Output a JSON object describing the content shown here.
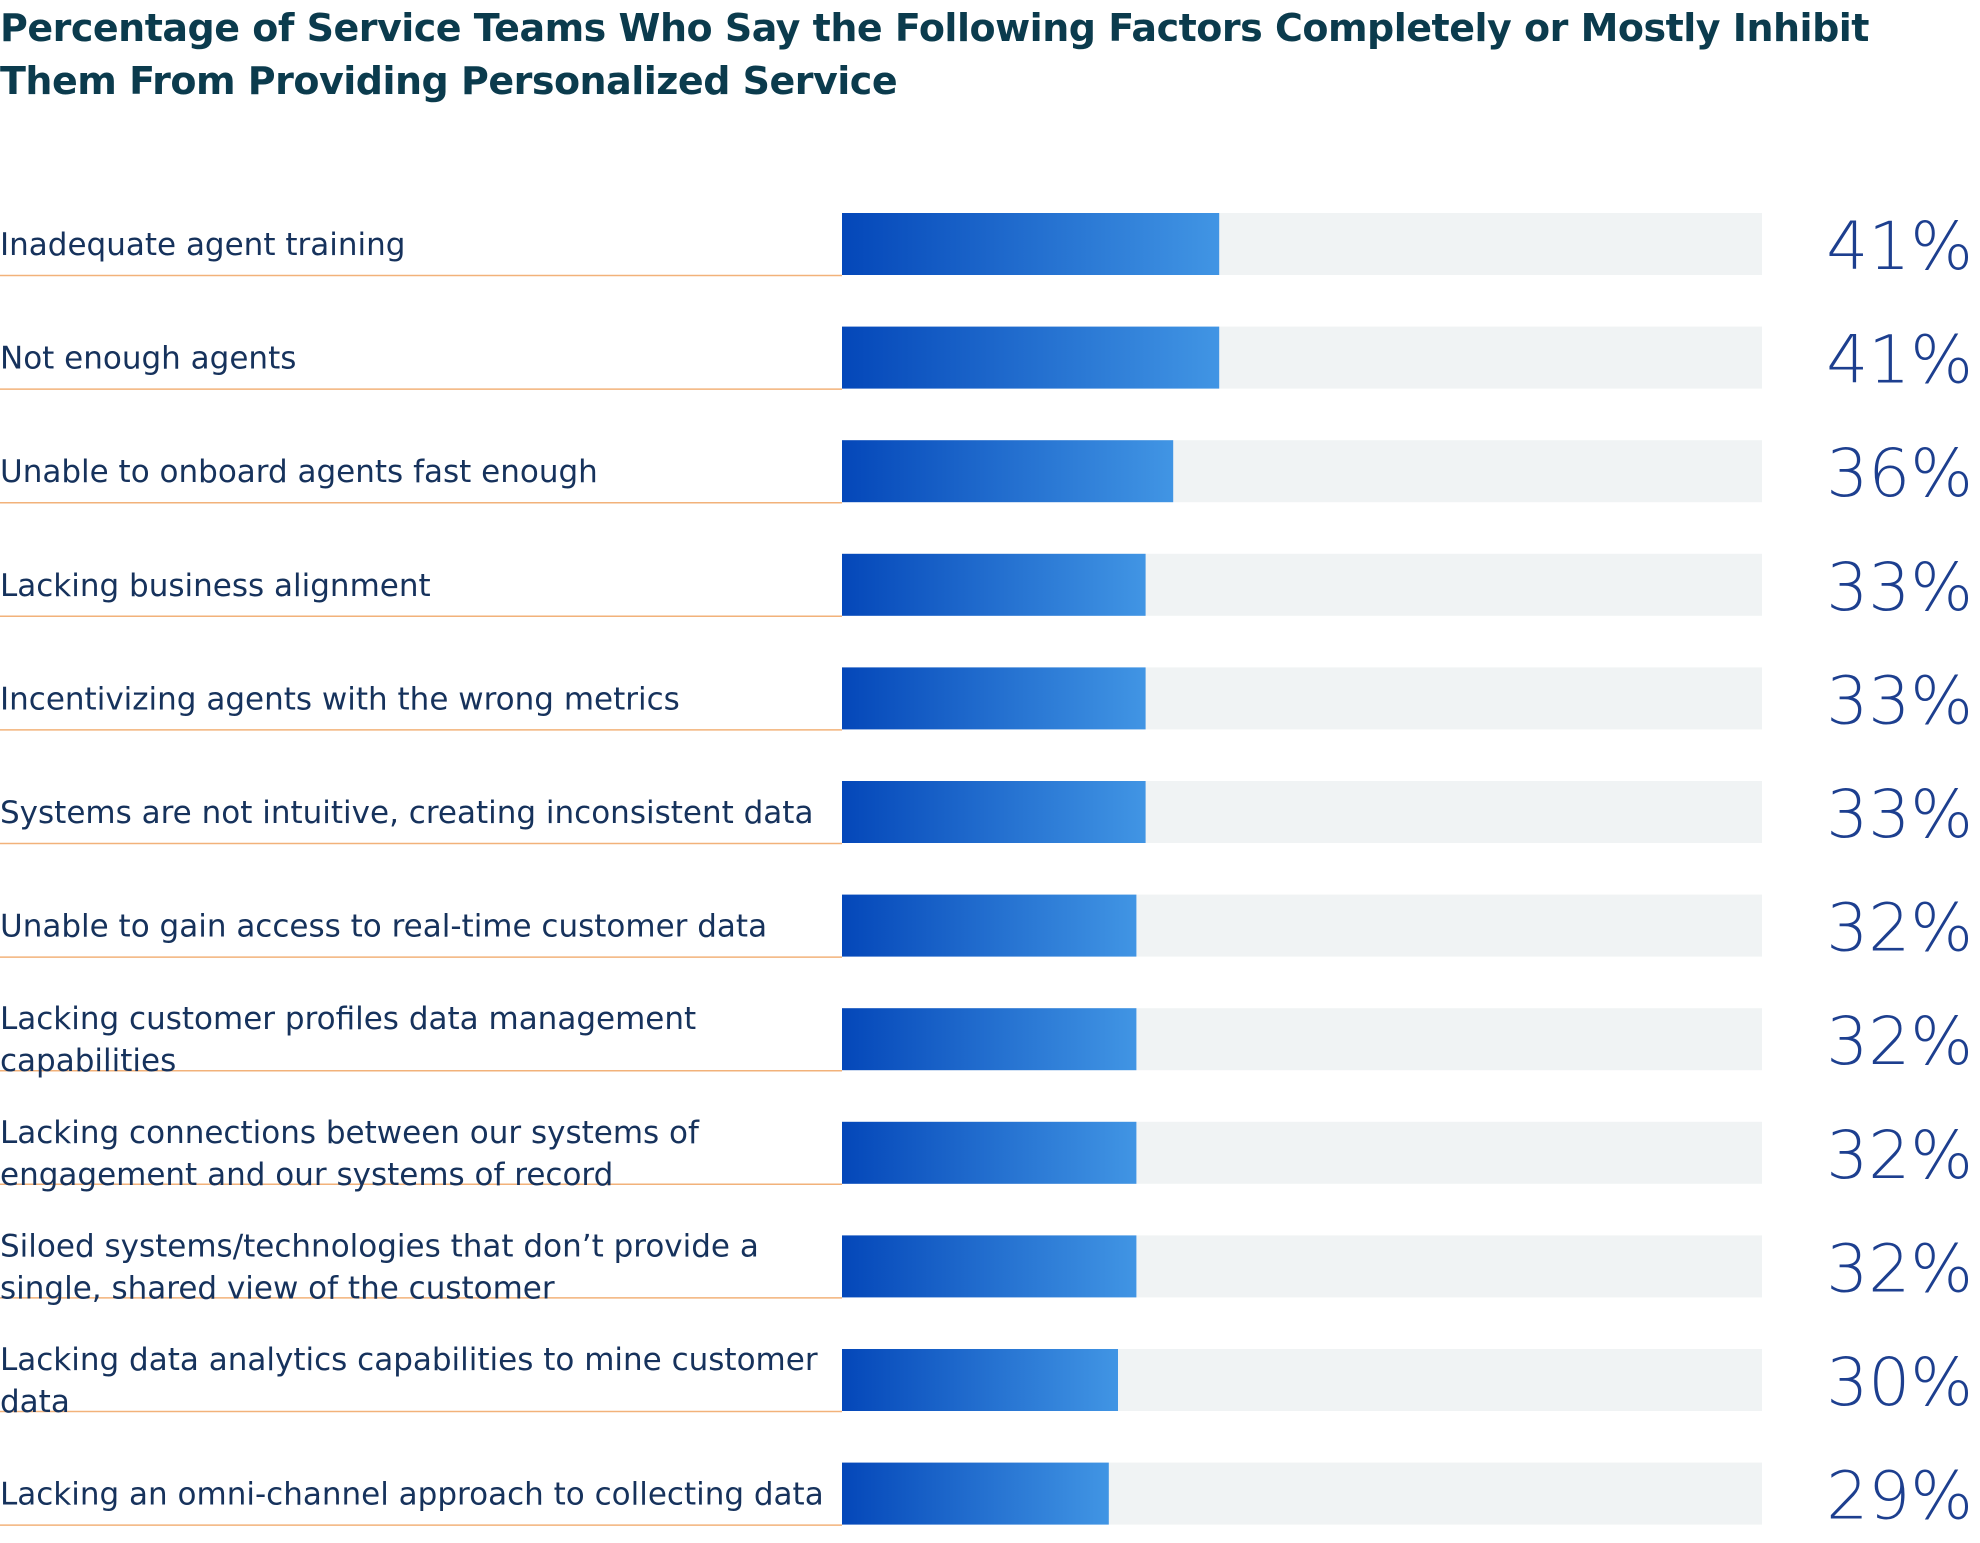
{
  "chart_data": {
    "type": "bar",
    "orientation": "horizontal",
    "title": "Percentage of Service Teams Who Say the Following Factors Completely or Mostly Inhibit Them From Providing Personalized Service",
    "categories": [
      "Inadequate agent training",
      "Not enough agents",
      "Unable to onboard agents fast enough",
      "Lacking business alignment",
      "Incentivizing agents with the wrong metrics",
      "Systems are not intuitive, creating inconsistent data",
      "Unable to gain access to real-time customer data",
      "Lacking customer profiles data management capabilities",
      "Lacking connections between our systems of engagement and our systems of record",
      "Siloed systems/technologies that don’t provide a single, shared view of the customer",
      "Lacking data analytics capabilities to mine customer data",
      "Lacking an omni-channel approach to collecting data"
    ],
    "label_lines": [
      [
        "Inadequate agent training"
      ],
      [
        "Not enough agents"
      ],
      [
        "Unable to onboard agents fast enough"
      ],
      [
        "Lacking business alignment"
      ],
      [
        "Incentivizing agents with the wrong metrics"
      ],
      [
        "Systems are not intuitive, creating inconsistent data"
      ],
      [
        "Unable to gain access to real-time customer data"
      ],
      [
        "Lacking customer profiles data management",
        "capabilities"
      ],
      [
        "Lacking connections between our systems of",
        "engagement and our systems of record"
      ],
      [
        "Siloed systems/technologies that don’t provide a",
        "single, shared view of the customer"
      ],
      [
        "Lacking data analytics capabilities to mine customer",
        "data"
      ],
      [
        "Lacking an omni-channel approach to collecting data"
      ]
    ],
    "values": [
      41,
      41,
      36,
      33,
      33,
      33,
      32,
      32,
      32,
      32,
      30,
      29
    ],
    "value_labels": [
      "41%",
      "41%",
      "36%",
      "33%",
      "33%",
      "33%",
      "32%",
      "32%",
      "32%",
      "32%",
      "30%",
      "29%"
    ],
    "xlim": [
      0,
      100
    ],
    "unit": "%",
    "colors": {
      "bar_start": "#0447b9",
      "bar_end": "#4195e4",
      "track": "#f0f3f4",
      "rule": "#f2b27a",
      "label": "#16325c",
      "value": "#1d3f8f",
      "title": "#0b3b4d"
    }
  }
}
